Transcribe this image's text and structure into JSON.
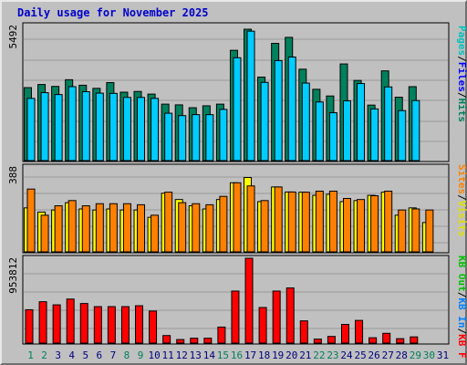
{
  "title": "Daily usage for November 2025",
  "colors": {
    "hits": "#00805c",
    "files": "#00ccff",
    "pages": "#00ffff",
    "sites": "#ff8000",
    "visits": "#ffff00",
    "kb_in": "#0080ff",
    "kb_out": "#00c000",
    "kb_f": "#ff0000",
    "legend_hits": "#00805c",
    "legend_files": "#0000ff",
    "legend_pages": "#00c0c0",
    "legend_sites": "#ff8000",
    "legend_visits": "#e0e000",
    "legend_kbin": "#0080ff",
    "legend_kbout": "#00c000",
    "legend_kbf": "#ff0000",
    "weekend_day": "#00805c",
    "weekday": "#000080"
  },
  "chart_data": [
    {
      "type": "bar",
      "panel": "hits-files-pages",
      "ytick": "5492",
      "ymax": 5492,
      "legend": [
        "Hits",
        "/",
        "Files",
        "/",
        "Pages"
      ],
      "series": [
        {
          "name": "Hits",
          "values": [
            3050,
            3180,
            3100,
            3380,
            3150,
            3020,
            3260,
            2860,
            2890,
            2780,
            2360,
            2330,
            2210,
            2290,
            2360,
            4610,
            5492,
            3490,
            4900,
            5150,
            3820,
            2980,
            2700,
            4040,
            3350,
            2320,
            3750,
            2650,
            3090,
            null,
            null
          ]
        },
        {
          "name": "Files",
          "values": [
            2600,
            2840,
            2760,
            3090,
            2880,
            2820,
            2810,
            2640,
            2640,
            2600,
            1980,
            1880,
            1920,
            1920,
            2140,
            4300,
            5410,
            3270,
            4180,
            4330,
            3240,
            2450,
            2000,
            2500,
            3220,
            2160,
            3080,
            2090,
            2510,
            null,
            null
          ]
        }
      ],
      "x": [
        1,
        2,
        3,
        4,
        5,
        6,
        7,
        8,
        9,
        10,
        11,
        12,
        13,
        14,
        15,
        16,
        17,
        18,
        19,
        20,
        21,
        22,
        23,
        24,
        25,
        26,
        27,
        28,
        29,
        30,
        31
      ]
    },
    {
      "type": "bar",
      "panel": "visits-sites",
      "ytick": "388",
      "ymax": 388,
      "legend": [
        "Visits",
        "/",
        "Sites"
      ],
      "series": [
        {
          "name": "Visits",
          "values": [
            210,
            190,
            200,
            235,
            205,
            200,
            205,
            200,
            200,
            165,
            280,
            250,
            220,
            205,
            250,
            330,
            355,
            240,
            310,
            286,
            285,
            270,
            275,
            240,
            245,
            270,
            285,
            175,
            210,
            140,
            null
          ]
        },
        {
          "name": "Sites",
          "values": [
            300,
            175,
            220,
            245,
            220,
            230,
            230,
            230,
            225,
            175,
            285,
            235,
            230,
            225,
            265,
            330,
            315,
            245,
            310,
            286,
            285,
            290,
            290,
            255,
            250,
            268,
            290,
            200,
            205,
            200,
            null
          ]
        }
      ],
      "x": [
        1,
        2,
        3,
        4,
        5,
        6,
        7,
        8,
        9,
        10,
        11,
        12,
        13,
        14,
        15,
        16,
        17,
        18,
        19,
        20,
        21,
        22,
        23,
        24,
        25,
        26,
        27,
        28,
        29,
        30,
        31
      ]
    },
    {
      "type": "bar",
      "panel": "kbytes",
      "ytick": "953812",
      "ymax": 953812,
      "legend": [
        "KB F",
        "/",
        "KB In",
        "/",
        "KB Out"
      ],
      "series": [
        {
          "name": "KB F",
          "values": [
            375000,
            465000,
            430000,
            495000,
            445000,
            410000,
            410000,
            410000,
            420000,
            360000,
            85000,
            40000,
            55000,
            55000,
            180000,
            585000,
            953812,
            400000,
            585000,
            620000,
            250000,
            45000,
            75000,
            210000,
            255000,
            60000,
            110000,
            50000,
            70000,
            null,
            null
          ]
        }
      ],
      "x": [
        1,
        2,
        3,
        4,
        5,
        6,
        7,
        8,
        9,
        10,
        11,
        12,
        13,
        14,
        15,
        16,
        17,
        18,
        19,
        20,
        21,
        22,
        23,
        24,
        25,
        26,
        27,
        28,
        29,
        30,
        31
      ]
    }
  ],
  "days": [
    "1",
    "2",
    "3",
    "4",
    "5",
    "6",
    "7",
    "8",
    "9",
    "10",
    "11",
    "12",
    "13",
    "14",
    "15",
    "16",
    "17",
    "18",
    "19",
    "20",
    "21",
    "22",
    "23",
    "24",
    "25",
    "26",
    "27",
    "28",
    "29",
    "30",
    "31"
  ],
  "weekend_days": [
    1,
    2,
    8,
    9,
    15,
    16,
    22,
    23,
    29,
    30
  ]
}
